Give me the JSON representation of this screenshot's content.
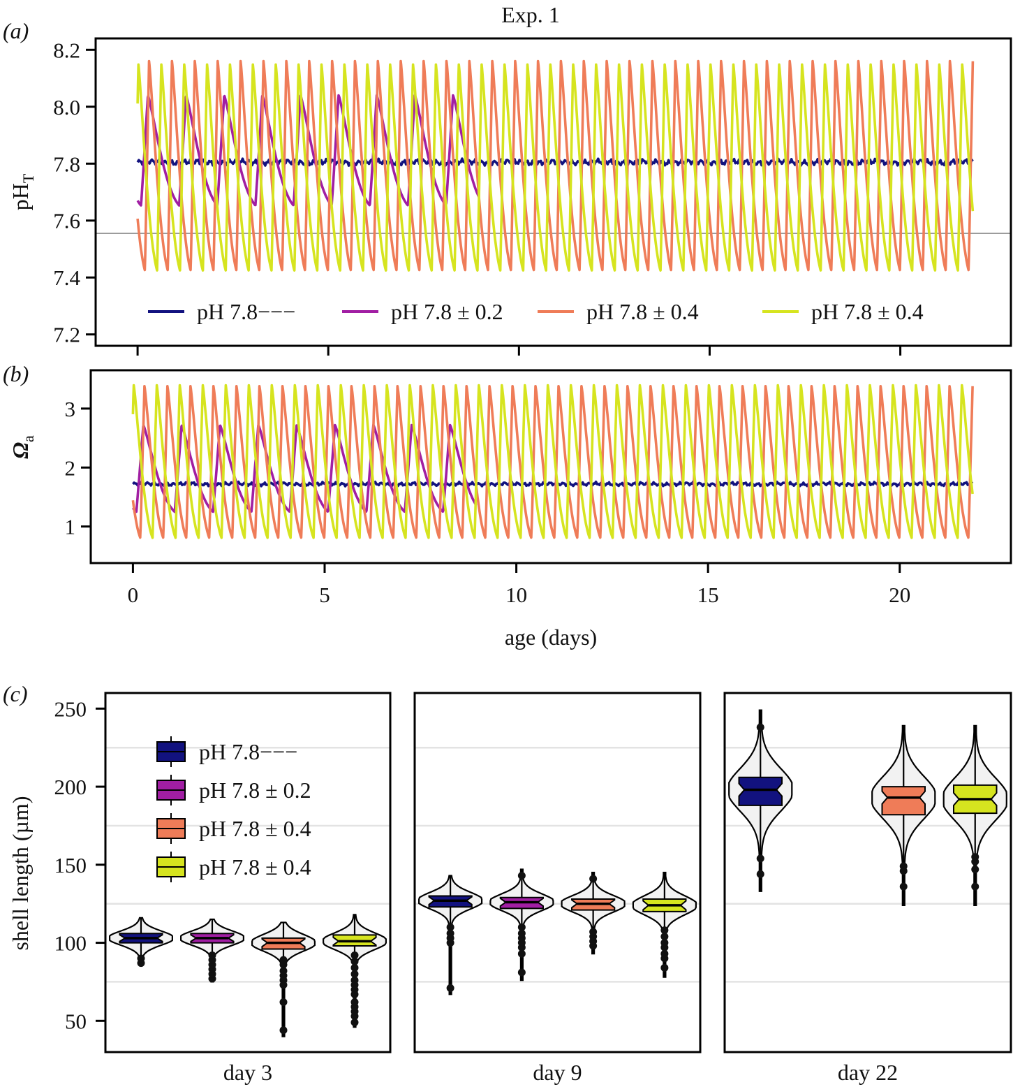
{
  "figure": {
    "title": "Exp. 1",
    "panel_labels": [
      "(a)",
      "(b)",
      "(c)"
    ]
  },
  "colors": {
    "pH 7.8---": "#12127f",
    "pH 7.8 ± 0.2": "#a11ea3",
    "pH 7.8 ± 0.4 (orange)": "#ef7c58",
    "pH 7.8 ± 0.4 (yellow)": "#d6e41f",
    "violin_fill": "#f2f2f2",
    "gridline": "#e3e3e3"
  },
  "chart_data": [
    {
      "panel": "(a)",
      "type": "line",
      "title": "Exp. 1",
      "xlabel": "",
      "ylabel_main": "pH",
      "ylabel_sub": "T",
      "xlim": [
        -1.1,
        22.9
      ],
      "ylim": [
        7.16,
        8.24
      ],
      "xticks": [
        0,
        5,
        10,
        15,
        20
      ],
      "yticks": [
        7.2,
        7.4,
        7.6,
        7.8,
        8.0,
        8.2
      ],
      "ytick_labels": [
        "7.2",
        "7.4",
        "7.6",
        "7.8",
        "8.0",
        "8.2"
      ],
      "hline": 7.555,
      "legend": [
        "pH 7.8−−−",
        "pH 7.8 ± 0.2",
        "pH 7.8 ± 0.4",
        "pH 7.8 ± 0.4"
      ],
      "legend_position": "bottom",
      "series": [
        {
          "name": "pH 7.8−−−",
          "color": "#12127f",
          "kind": "constant",
          "mean": 7.805,
          "x_range": [
            0,
            21.9
          ]
        },
        {
          "name": "pH 7.8 ± 0.2",
          "color": "#a11ea3",
          "kind": "fluctuating",
          "max": 8.04,
          "min": 7.64,
          "period_days": 1.0,
          "first_peak_day": 0.27,
          "x_range": [
            0,
            8.95
          ]
        },
        {
          "name": "pH 7.8 ± 0.4",
          "color": "#ef7c58",
          "kind": "fluctuating",
          "max": 8.16,
          "min": 7.4,
          "period_days": 0.6,
          "first_peak_day": 0.3,
          "x_range": [
            0,
            21.9
          ]
        },
        {
          "name": "pH 7.8 ± 0.4",
          "color": "#d6e41f",
          "kind": "fluctuating",
          "max": 8.15,
          "min": 7.4,
          "period_days": 0.6,
          "first_peak_day": 0.62,
          "x_range": [
            0,
            21.9
          ]
        }
      ]
    },
    {
      "panel": "(b)",
      "type": "line",
      "xlabel": "age (days)",
      "ylabel_main": "Ω",
      "ylabel_sub": "a",
      "xlim": [
        -1.1,
        22.9
      ],
      "ylim": [
        0.38,
        3.65
      ],
      "xticks": [
        0,
        5,
        10,
        15,
        20
      ],
      "xtick_labels": [
        "0",
        "5",
        "10",
        "15",
        "20"
      ],
      "yticks": [
        1,
        2,
        3
      ],
      "ytick_labels": [
        "1",
        "2",
        "3"
      ],
      "series": [
        {
          "name": "pH 7.8−−−",
          "color": "#12127f",
          "kind": "constant",
          "mean": 1.72,
          "x_range": [
            0,
            21.9
          ]
        },
        {
          "name": "pH 7.8 ± 0.2",
          "color": "#a11ea3",
          "kind": "fluctuating",
          "max": 2.72,
          "min": 1.2,
          "period_days": 1.0,
          "first_peak_day": 0.27,
          "x_range": [
            0,
            8.95
          ]
        },
        {
          "name": "pH 7.8 ± 0.4",
          "color": "#ef7c58",
          "kind": "fluctuating",
          "max": 3.38,
          "min": 0.72,
          "period_days": 0.6,
          "first_peak_day": 0.3,
          "x_range": [
            0,
            21.9
          ]
        },
        {
          "name": "pH 7.8 ± 0.4",
          "color": "#d6e41f",
          "kind": "fluctuating",
          "max": 3.4,
          "min": 0.72,
          "period_days": 0.6,
          "first_peak_day": 0.62,
          "x_range": [
            0,
            21.9
          ]
        }
      ]
    },
    {
      "panel": "(c)",
      "type": "box",
      "ylabel": "shell length (µm)",
      "ylim": [
        30,
        260
      ],
      "yticks": [
        50,
        100,
        150,
        200,
        250
      ],
      "ytick_labels": [
        "50",
        "100",
        "150",
        "200",
        "250"
      ],
      "minor_gridlines": [
        75,
        125,
        175,
        225
      ],
      "legend": [
        "pH 7.8−−−",
        "pH 7.8 ± 0.2",
        "pH 7.8 ± 0.4",
        "pH 7.8 ± 0.4"
      ],
      "legend_position": "top-left",
      "facets": [
        {
          "label": "day 3",
          "groups": [
            {
              "name": "pH 7.8−−−",
              "color": "#12127f",
              "q1": 100,
              "median": 103,
              "q3": 106,
              "whisker_low": 89,
              "whisker_high": 116,
              "outliers": [
                87,
                90
              ]
            },
            {
              "name": "pH 7.8 ± 0.2",
              "color": "#a11ea3",
              "q1": 100,
              "median": 103,
              "q3": 106,
              "whisker_low": 75,
              "whisker_high": 115,
              "outliers": [
                77,
                80,
                83,
                86,
                89,
                92
              ]
            },
            {
              "name": "pH 7.8 ± 0.4",
              "color": "#ef7c58",
              "q1": 96,
              "median": 100,
              "q3": 103,
              "whisker_low": 40,
              "whisker_high": 113,
              "outliers": [
                44,
                62,
                73,
                76,
                79,
                82,
                86,
                89
              ]
            },
            {
              "name": "pH 7.8 ± 0.4",
              "color": "#d6e41f",
              "q1": 98,
              "median": 101,
              "q3": 105,
              "whisker_low": 46,
              "whisker_high": 118,
              "outliers": [
                49,
                53,
                56,
                59,
                62,
                67,
                70,
                73,
                76,
                80,
                84,
                88,
                92
              ]
            }
          ]
        },
        {
          "label": "day 9",
          "groups": [
            {
              "name": "pH 7.8−−−",
              "color": "#12127f",
              "q1": 123,
              "median": 127,
              "q3": 130,
              "whisker_low": 67,
              "whisker_high": 143,
              "outliers": [
                71,
                100,
                103,
                106,
                110
              ]
            },
            {
              "name": "pH 7.8 ± 0.2",
              "color": "#a11ea3",
              "q1": 122,
              "median": 126,
              "q3": 129,
              "whisker_low": 76,
              "whisker_high": 147,
              "outliers": [
                81,
                93,
                97,
                100,
                103,
                106,
                110,
                143
              ]
            },
            {
              "name": "pH 7.8 ± 0.4",
              "color": "#ef7c58",
              "q1": 121,
              "median": 125,
              "q3": 128,
              "whisker_low": 93,
              "whisker_high": 145,
              "outliers": [
                98,
                101,
                104,
                107,
                141
              ]
            },
            {
              "name": "pH 7.8 ± 0.4",
              "color": "#d6e41f",
              "q1": 120,
              "median": 124,
              "q3": 128,
              "whisker_low": 78,
              "whisker_high": 145,
              "outliers": [
                84,
                90,
                93,
                97,
                100,
                104,
                108
              ]
            }
          ]
        },
        {
          "label": "day 22",
          "groups": [
            {
              "name": "pH 7.8−−−",
              "color": "#12127f",
              "q1": 188,
              "median": 198,
              "q3": 206,
              "whisker_low": 133,
              "whisker_high": 249,
              "outliers": [
                144,
                154,
                238
              ]
            },
            {
              "name": "pH 7.8 ± 0.2",
              "color": "#a11ea3",
              "absent": true
            },
            {
              "name": "pH 7.8 ± 0.4",
              "color": "#ef7c58",
              "q1": 182,
              "median": 193,
              "q3": 200,
              "whisker_low": 124,
              "whisker_high": 239,
              "outliers": [
                136,
                146,
                149
              ]
            },
            {
              "name": "pH 7.8 ± 0.4",
              "color": "#d6e41f",
              "q1": 183,
              "median": 192,
              "q3": 201,
              "whisker_low": 124,
              "whisker_high": 239,
              "outliers": [
                136,
                147,
                152,
                155
              ]
            }
          ]
        }
      ]
    }
  ]
}
